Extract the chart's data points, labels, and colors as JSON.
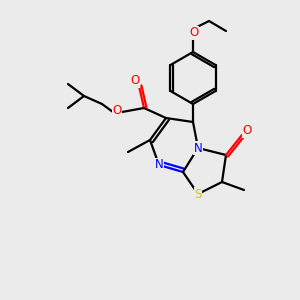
{
  "background_color": "#ebebeb",
  "bond_color": "#000000",
  "atom_colors": {
    "O": "#ff0000",
    "N": "#0000ff",
    "S": "#cccc00",
    "C": "#000000"
  },
  "figsize": [
    3.0,
    3.0
  ],
  "dpi": 100
}
